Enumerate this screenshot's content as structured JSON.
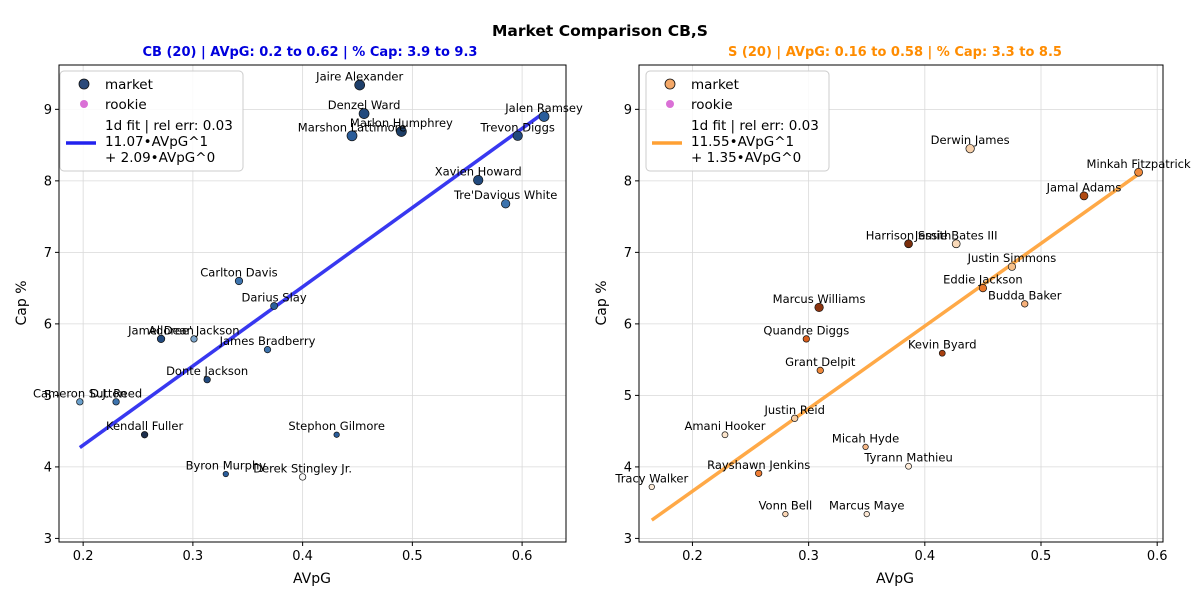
{
  "figure_title": "Market Comparison CB,S",
  "chart_data": [
    {
      "type": "scatter",
      "title": "CB (20) | AVpG: 0.2 to 0.62 | % Cap: 3.9 to 9.3",
      "title_color": "#0000dd",
      "xlabel": "AVpG",
      "ylabel": "Cap %",
      "xlim": [
        0.178,
        0.64
      ],
      "ylim": [
        2.95,
        9.62
      ],
      "xticks": [
        "0.2",
        "0.3",
        "0.4",
        "0.5",
        "0.6"
      ],
      "yticks": [
        "3",
        "4",
        "5",
        "6",
        "7",
        "8",
        "9"
      ],
      "grid": true,
      "legend_position": "upper-left",
      "legend": {
        "market": "market",
        "rookie": "rookie",
        "fit_lines": [
          "1d fit | rel err: 0.03",
          "11.07•AVpG^1",
          "+ 2.09•AVpG^0"
        ]
      },
      "colors": {
        "market_marker": "#2c4a7a",
        "rookie_marker": "#da70d6",
        "fit_line": "#2222ee"
      },
      "fit": {
        "slope": 11.07,
        "intercept": 2.09,
        "x_range": [
          0.197,
          0.62
        ]
      },
      "series": [
        {
          "name": "market",
          "points": [
            {
              "label": "Jalen Ramsey",
              "x": 0.62,
              "y": 8.9,
              "size": 8,
              "color": "#2a5d9a"
            },
            {
              "label": "Jaire Alexander",
              "x": 0.452,
              "y": 9.34,
              "size": 8,
              "color": "#1e3f6a"
            },
            {
              "label": "Denzel Ward",
              "x": 0.456,
              "y": 8.94,
              "size": 8,
              "color": "#224a7e"
            },
            {
              "label": "Marlon Humphrey",
              "x": 0.49,
              "y": 8.69,
              "size": 8,
              "color": "#1d3e66"
            },
            {
              "label": "Marshon Lattimore",
              "x": 0.445,
              "y": 8.63,
              "size": 8,
              "color": "#2a5d9a"
            },
            {
              "label": "Trevon Diggs",
              "x": 0.596,
              "y": 8.63,
              "size": 7.5,
              "color": "#224a7e"
            },
            {
              "label": "Xavien Howard",
              "x": 0.56,
              "y": 8.01,
              "size": 7.5,
              "color": "#224a7e"
            },
            {
              "label": "Tre'Davious White",
              "x": 0.585,
              "y": 7.68,
              "size": 6.5,
              "color": "#3d73ad"
            },
            {
              "label": "Carlton Davis",
              "x": 0.342,
              "y": 6.6,
              "size": 5.5,
              "color": "#3d73ad"
            },
            {
              "label": "Darius Slay",
              "x": 0.374,
              "y": 6.25,
              "size": 5,
              "color": "#2a5d9a"
            },
            {
              "label": "Jamel Dean",
              "x": 0.271,
              "y": 5.79,
              "size": 5.5,
              "color": "#224a7e"
            },
            {
              "label": "Adoree' Jackson",
              "x": 0.301,
              "y": 5.79,
              "size": 4.5,
              "color": "#7da6cc"
            },
            {
              "label": "James Bradberry",
              "x": 0.368,
              "y": 5.64,
              "size": 4.5,
              "color": "#3d73ad"
            },
            {
              "label": "Donte Jackson",
              "x": 0.313,
              "y": 5.22,
              "size": 4.5,
              "color": "#224a7e"
            },
            {
              "label": "Cameron Sutton",
              "x": 0.197,
              "y": 4.91,
              "size": 4.5,
              "color": "#6aa0cc"
            },
            {
              "label": "D.J. Reed",
              "x": 0.23,
              "y": 4.91,
              "size": 4.5,
              "color": "#3d73ad"
            },
            {
              "label": "Kendall Fuller",
              "x": 0.256,
              "y": 4.45,
              "size": 4.5,
              "color": "#1d2f4d"
            },
            {
              "label": "Stephon Gilmore",
              "x": 0.431,
              "y": 4.45,
              "size": 3.5,
              "color": "#2a5d9a"
            },
            {
              "label": "Byron Murphy",
              "x": 0.33,
              "y": 3.9,
              "size": 3.5,
              "color": "#2a5d9a"
            },
            {
              "label": "Derek Stingley Jr.",
              "x": 0.4,
              "y": 3.86,
              "size": 4.5,
              "color": "#f7f7f7"
            }
          ]
        }
      ]
    },
    {
      "type": "scatter",
      "title": "S (20) | AVpG: 0.16 to 0.58 | % Cap: 3.3 to 8.5",
      "title_color": "#ff8c00",
      "xlabel": "AVpG",
      "ylabel": "Cap %",
      "xlim": [
        0.154,
        0.605
      ],
      "ylim": [
        2.95,
        9.62
      ],
      "xticks": [
        "0.2",
        "0.3",
        "0.4",
        "0.5",
        "0.6"
      ],
      "yticks": [
        "3",
        "4",
        "5",
        "6",
        "7",
        "8",
        "9"
      ],
      "grid": true,
      "legend_position": "upper-left",
      "legend": {
        "market": "market",
        "rookie": "rookie",
        "fit_lines": [
          "1d fit | rel err: 0.03",
          "11.55•AVpG^1",
          "+ 1.35•AVpG^0"
        ]
      },
      "colors": {
        "market_marker": "#f4a868",
        "rookie_marker": "#da70d6",
        "fit_line": "#ffa033"
      },
      "fit": {
        "slope": 11.55,
        "intercept": 1.35,
        "x_range": [
          0.165,
          0.584
        ]
      },
      "series": [
        {
          "name": "market",
          "points": [
            {
              "label": "Derwin James",
              "x": 0.439,
              "y": 8.45,
              "size": 6.5,
              "color": "#f7d0aa"
            },
            {
              "label": "Minkah Fitzpatrick",
              "x": 0.584,
              "y": 8.12,
              "size": 6,
              "color": "#f08a3c"
            },
            {
              "label": "Jamal Adams",
              "x": 0.537,
              "y": 7.79,
              "size": 6,
              "color": "#b04a12"
            },
            {
              "label": "Harrison Smith",
              "x": 0.386,
              "y": 7.12,
              "size": 6,
              "color": "#7a2e0c"
            },
            {
              "label": "Jessie Bates III",
              "x": 0.427,
              "y": 7.12,
              "size": 6,
              "color": "#f9d9b8"
            },
            {
              "label": "Justin Simmons",
              "x": 0.475,
              "y": 6.8,
              "size": 5.5,
              "color": "#f6c08a"
            },
            {
              "label": "Eddie Jackson",
              "x": 0.45,
              "y": 6.5,
              "size": 5.5,
              "color": "#e9782c"
            },
            {
              "label": "Budda Baker",
              "x": 0.486,
              "y": 6.28,
              "size": 4.5,
              "color": "#f6b07a"
            },
            {
              "label": "Marcus Williams",
              "x": 0.309,
              "y": 6.23,
              "size": 6.5,
              "color": "#8c3510"
            },
            {
              "label": "Quandre Diggs",
              "x": 0.298,
              "y": 5.79,
              "size": 4.5,
              "color": "#d85e1c"
            },
            {
              "label": "Kevin Byard",
              "x": 0.415,
              "y": 5.59,
              "size": 4,
              "color": "#a8400f"
            },
            {
              "label": "Grant Delpit",
              "x": 0.31,
              "y": 5.35,
              "size": 4.5,
              "color": "#f08a3c"
            },
            {
              "label": "Justin Reid",
              "x": 0.288,
              "y": 4.68,
              "size": 4.5,
              "color": "#f7cda2"
            },
            {
              "label": "Amani Hooker",
              "x": 0.228,
              "y": 4.45,
              "size": 4,
              "color": "#fce5cc"
            },
            {
              "label": "Micah Hyde",
              "x": 0.349,
              "y": 4.28,
              "size": 3.5,
              "color": "#f7b887"
            },
            {
              "label": "Tyrann Mathieu",
              "x": 0.386,
              "y": 4.01,
              "size": 4,
              "color": "#fdebd8"
            },
            {
              "label": "Rayshawn Jenkins",
              "x": 0.257,
              "y": 3.91,
              "size": 4.5,
              "color": "#ee7d35"
            },
            {
              "label": "Tracy Walker",
              "x": 0.165,
              "y": 3.72,
              "size": 3.5,
              "color": "#fdebd8"
            },
            {
              "label": "Vonn Bell",
              "x": 0.28,
              "y": 3.34,
              "size": 3.5,
              "color": "#fbd6b5"
            },
            {
              "label": "Marcus Maye",
              "x": 0.35,
              "y": 3.34,
              "size": 3.5,
              "color": "#fde8d4"
            }
          ]
        }
      ]
    }
  ]
}
